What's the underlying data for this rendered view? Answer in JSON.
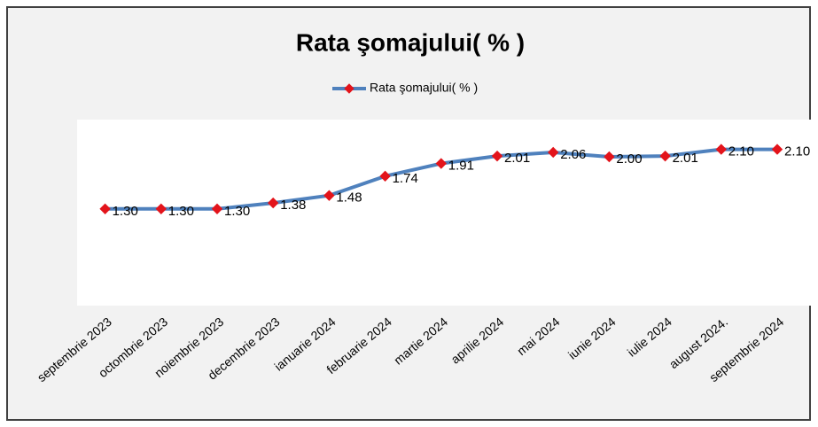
{
  "chart_data": {
    "type": "line",
    "title": "Rata şomajului( % )",
    "categories": [
      "septembrie 2023",
      "octombrie 2023",
      "noiembrie 2023",
      "decembrie 2023",
      "ianuarie 2024",
      "februarie 2024",
      "martie 2024",
      "aprilie 2024",
      "mai 2024",
      "iunie 2024",
      "iulie 2024",
      "august 2024.",
      "septembrie 2024"
    ],
    "series": [
      {
        "name": "Rata şomajului( % )",
        "color": "#4f81bd",
        "marker_color": "#e3141b",
        "values": [
          1.3,
          1.3,
          1.3,
          1.38,
          1.48,
          1.74,
          1.91,
          2.01,
          2.06,
          2.0,
          2.01,
          2.1,
          2.1
        ],
        "value_labels": [
          "1.30",
          "1.30",
          "1.30",
          "1.38",
          "1.48",
          "1.74",
          "1.91",
          "2.01",
          "2.06",
          "2.00",
          "2.01",
          "2.10",
          "2.10"
        ]
      }
    ],
    "ylim": [
      0,
      2.5
    ],
    "legend": "top"
  }
}
